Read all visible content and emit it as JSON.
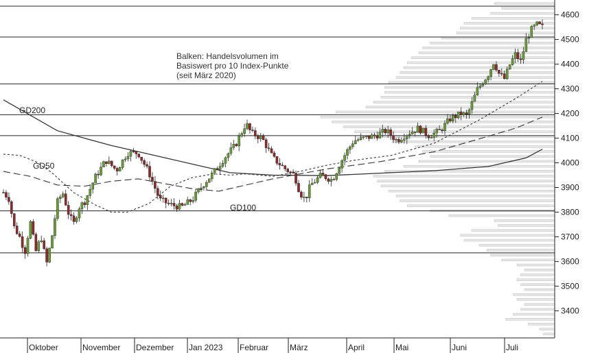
{
  "chart_data": {
    "type": "candlestick-with-volume-profile",
    "title": "",
    "annotation_lines": [
      "Balken: Handelsvolumen im",
      "Basiswert pro 10 Index-Punkte",
      "(seit März 2020)"
    ],
    "x_tick_labels": [
      "Oktober",
      "November",
      "Dezember",
      "Jan 2023",
      "Februar",
      "März",
      "April",
      "Mai",
      "Juni",
      "Juli"
    ],
    "y_tick_labels": [
      "3400",
      "3500",
      "3600",
      "3700",
      "3800",
      "3900",
      "4000",
      "4100",
      "4200",
      "4300",
      "4400",
      "4500",
      "4600"
    ],
    "ylim": [
      3290,
      4660
    ],
    "horizontal_levels": [
      4635,
      4510,
      4320,
      4195,
      4110,
      3805,
      3635
    ],
    "series": [
      {
        "name": "GD200",
        "style": "solid",
        "points": [
          [
            0,
            4255
          ],
          [
            0.1,
            4130
          ],
          [
            0.2,
            4070
          ],
          [
            0.3,
            4020
          ],
          [
            0.36,
            3990
          ],
          [
            0.42,
            3960
          ],
          [
            0.5,
            3950
          ],
          [
            0.6,
            3948
          ],
          [
            0.7,
            3958
          ],
          [
            0.8,
            3968
          ],
          [
            0.9,
            3985
          ],
          [
            0.97,
            4020
          ],
          [
            1.0,
            4055
          ]
        ]
      },
      {
        "name": "GD100",
        "style": "long-dash",
        "points": [
          [
            0,
            3965
          ],
          [
            0.05,
            3945
          ],
          [
            0.1,
            3910
          ],
          [
            0.15,
            3905
          ],
          [
            0.2,
            3925
          ],
          [
            0.25,
            3935
          ],
          [
            0.3,
            3915
          ],
          [
            0.35,
            3895
          ],
          [
            0.4,
            3885
          ],
          [
            0.45,
            3910
          ],
          [
            0.5,
            3935
          ],
          [
            0.55,
            3955
          ],
          [
            0.6,
            3975
          ],
          [
            0.7,
            4005
          ],
          [
            0.8,
            4045
          ],
          [
            0.88,
            4095
          ],
          [
            0.95,
            4140
          ],
          [
            1.0,
            4185
          ]
        ]
      },
      {
        "name": "GD50",
        "style": "short-dash",
        "points": [
          [
            0,
            4035
          ],
          [
            0.03,
            4030
          ],
          [
            0.06,
            4005
          ],
          [
            0.09,
            3960
          ],
          [
            0.13,
            3880
          ],
          [
            0.17,
            3830
          ],
          [
            0.2,
            3800
          ],
          [
            0.23,
            3800
          ],
          [
            0.27,
            3835
          ],
          [
            0.31,
            3905
          ],
          [
            0.35,
            3940
          ],
          [
            0.39,
            3955
          ],
          [
            0.42,
            3950
          ],
          [
            0.45,
            3955
          ],
          [
            0.5,
            3945
          ],
          [
            0.55,
            3965
          ],
          [
            0.6,
            3990
          ],
          [
            0.65,
            4010
          ],
          [
            0.72,
            4030
          ],
          [
            0.8,
            4080
          ],
          [
            0.88,
            4170
          ],
          [
            0.95,
            4260
          ],
          [
            1.0,
            4330
          ]
        ]
      }
    ],
    "volume_profile": [
      [
        3300,
        30
      ],
      [
        3320,
        40
      ],
      [
        3340,
        70
      ],
      [
        3360,
        130
      ],
      [
        3380,
        110
      ],
      [
        3400,
        90
      ],
      [
        3420,
        80
      ],
      [
        3440,
        100
      ],
      [
        3460,
        110
      ],
      [
        3480,
        80
      ],
      [
        3500,
        90
      ],
      [
        3520,
        100
      ],
      [
        3540,
        90
      ],
      [
        3560,
        80
      ],
      [
        3580,
        100
      ],
      [
        3600,
        140
      ],
      [
        3620,
        170
      ],
      [
        3640,
        180
      ],
      [
        3660,
        200
      ],
      [
        3680,
        240
      ],
      [
        3700,
        250
      ],
      [
        3720,
        220
      ],
      [
        3740,
        150
      ],
      [
        3760,
        160
      ],
      [
        3780,
        280
      ],
      [
        3800,
        330
      ],
      [
        3820,
        390
      ],
      [
        3840,
        410
      ],
      [
        3860,
        420
      ],
      [
        3880,
        440
      ],
      [
        3900,
        460
      ],
      [
        3920,
        470
      ],
      [
        3940,
        480
      ],
      [
        3960,
        450
      ],
      [
        3980,
        400
      ],
      [
        4000,
        360
      ],
      [
        4020,
        330
      ],
      [
        4040,
        350
      ],
      [
        4060,
        370
      ],
      [
        4080,
        430
      ],
      [
        4100,
        490
      ],
      [
        4120,
        530
      ],
      [
        4140,
        560
      ],
      [
        4160,
        590
      ],
      [
        4180,
        620
      ],
      [
        4200,
        580
      ],
      [
        4220,
        500
      ],
      [
        4240,
        480
      ],
      [
        4260,
        460
      ],
      [
        4280,
        450
      ],
      [
        4300,
        450
      ],
      [
        4320,
        440
      ],
      [
        4340,
        420
      ],
      [
        4360,
        410
      ],
      [
        4380,
        400
      ],
      [
        4400,
        390
      ],
      [
        4420,
        380
      ],
      [
        4440,
        360
      ],
      [
        4460,
        350
      ],
      [
        4480,
        330
      ],
      [
        4500,
        300
      ],
      [
        4520,
        260
      ],
      [
        4540,
        250
      ],
      [
        4560,
        240
      ],
      [
        4580,
        220
      ],
      [
        4600,
        170
      ],
      [
        4620,
        140
      ],
      [
        4640,
        160
      ],
      [
        4660,
        230
      ]
    ],
    "legend_labels": [
      {
        "text": "GD200"
      },
      {
        "text": "GD50"
      },
      {
        "text": "GD100"
      }
    ],
    "candle_anchors": [
      [
        0,
        3880
      ],
      [
        0.01,
        3855
      ],
      [
        0.02,
        3740
      ],
      [
        0.03,
        3700
      ],
      [
        0.04,
        3640
      ],
      [
        0.05,
        3760
      ],
      [
        0.06,
        3640
      ],
      [
        0.07,
        3700
      ],
      [
        0.08,
        3590
      ],
      [
        0.09,
        3700
      ],
      [
        0.1,
        3840
      ],
      [
        0.11,
        3880
      ],
      [
        0.12,
        3800
      ],
      [
        0.13,
        3750
      ],
      [
        0.14,
        3820
      ],
      [
        0.15,
        3840
      ],
      [
        0.17,
        3940
      ],
      [
        0.19,
        4010
      ],
      [
        0.21,
        3970
      ],
      [
        0.23,
        4040
      ],
      [
        0.25,
        4040
      ],
      [
        0.27,
        3960
      ],
      [
        0.29,
        3850
      ],
      [
        0.31,
        3830
      ],
      [
        0.33,
        3820
      ],
      [
        0.35,
        3850
      ],
      [
        0.37,
        3910
      ],
      [
        0.39,
        3960
      ],
      [
        0.41,
        4020
      ],
      [
        0.43,
        4070
      ],
      [
        0.45,
        4160
      ],
      [
        0.46,
        4120
      ],
      [
        0.48,
        4100
      ],
      [
        0.5,
        4020
      ],
      [
        0.52,
        3980
      ],
      [
        0.54,
        3950
      ],
      [
        0.55,
        3880
      ],
      [
        0.56,
        3850
      ],
      [
        0.57,
        3910
      ],
      [
        0.59,
        3950
      ],
      [
        0.61,
        3930
      ],
      [
        0.63,
        4020
      ],
      [
        0.65,
        4090
      ],
      [
        0.67,
        4100
      ],
      [
        0.69,
        4110
      ],
      [
        0.71,
        4130
      ],
      [
        0.73,
        4090
      ],
      [
        0.75,
        4120
      ],
      [
        0.77,
        4140
      ],
      [
        0.79,
        4110
      ],
      [
        0.81,
        4130
      ],
      [
        0.83,
        4180
      ],
      [
        0.85,
        4200
      ],
      [
        0.86,
        4190
      ],
      [
        0.88,
        4300
      ],
      [
        0.9,
        4360
      ],
      [
        0.91,
        4410
      ],
      [
        0.92,
        4360
      ],
      [
        0.93,
        4340
      ],
      [
        0.94,
        4400
      ],
      [
        0.95,
        4440
      ],
      [
        0.96,
        4410
      ],
      [
        0.97,
        4500
      ],
      [
        0.98,
        4540
      ],
      [
        0.99,
        4560
      ],
      [
        1.0,
        4550
      ]
    ]
  }
}
